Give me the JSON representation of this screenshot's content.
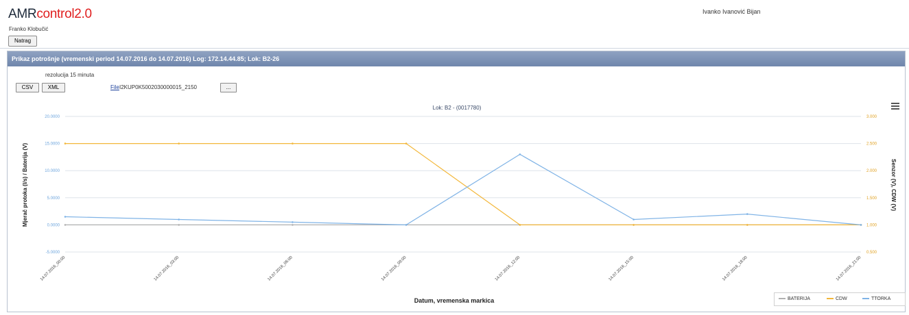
{
  "app": {
    "brand_prefix": "AMR",
    "brand_suffix": "control2.0",
    "subtitle": "Franko Klobučić",
    "logged_user": "Ivanko Ivanović Bijan"
  },
  "toolbar": {
    "back_label": "Natrag"
  },
  "panel": {
    "header": "Prikaz potrošnje (vremenski period 14.07.2016 do 14.07.2016) Log: 172.14.44.85; Lok: B2-26",
    "resolution": "rezolucija 15 minuta",
    "csv_label": "CSV",
    "xml_label": "XML",
    "file_label": "File",
    "file_name": "I2KUP0K5002030000015_2150",
    "browse_label": "...",
    "menu_icon": "hamburger-menu-icon"
  },
  "colors": {
    "header_bg": "#7a8fb3",
    "brand_red": "#e02020",
    "series_blue": "#7fb3e6",
    "series_orange": "#f3b73a",
    "series_gray": "#b0b0b0"
  },
  "chart_data": {
    "type": "line",
    "title": "Lok: B2 - (0017780)",
    "xlabel": "Datum, vremenska markica",
    "ylabel_left": "Mjerač protoka (l/s) / Baterija (V)",
    "ylabel_right": "Senzor (V), CDW (V)",
    "x": [
      "14.07.2016_00:00",
      "14.07.2016_03:00",
      "14.07.2016_06:00",
      "14.07.2016_09:00",
      "14.07.2016_12:00",
      "14.07.2016_15:00",
      "14.07.2016_18:00",
      "14.07.2016_21:00"
    ],
    "left_axis": {
      "ticks": [
        "20.0000",
        "15.0000",
        "10.0000",
        "5.0000",
        "0.0000",
        "-5.0000"
      ],
      "ylim": [
        -5,
        20
      ]
    },
    "right_axis": {
      "ticks": [
        "3.000",
        "2.500",
        "2.000",
        "1.500",
        "1.000",
        "0.500"
      ],
      "ylim": [
        0.5,
        3
      ]
    },
    "series": [
      {
        "name": "BATERIJA",
        "axis": "left",
        "color": "#b0b0b0",
        "values": [
          0,
          0,
          0,
          0,
          0,
          0,
          0,
          0
        ]
      },
      {
        "name": "CDW",
        "axis": "right",
        "color": "#f3b73a",
        "values": [
          2.5,
          2.5,
          2.5,
          2.5,
          1.0,
          1.0,
          1.0,
          1.0
        ]
      },
      {
        "name": "TTORKA",
        "axis": "left",
        "color": "#7fb3e6",
        "values": [
          1.5,
          1.0,
          0.5,
          0.0,
          13.0,
          1.0,
          2.0,
          0.0
        ]
      }
    ]
  }
}
